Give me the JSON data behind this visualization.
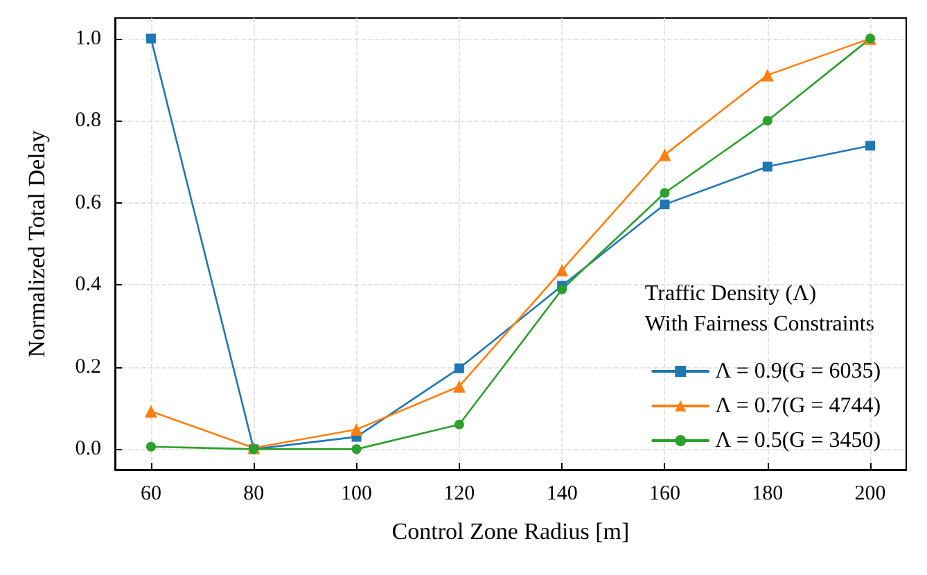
{
  "chart_data": {
    "type": "line",
    "xlabel": "Control Zone Radius [m]",
    "ylabel": "Normalized Total Delay",
    "legend_title": "Traffic Density (Λ)\nWith Fairness Constraints",
    "x": [
      60,
      80,
      100,
      120,
      140,
      160,
      180,
      200
    ],
    "series": [
      {
        "name": "Λ = 0.9(G = 6035)",
        "color": "#1f77b4",
        "marker": "square",
        "values": [
          1.0,
          0.0,
          0.03,
          0.197,
          0.398,
          0.596,
          0.688,
          0.739
        ]
      },
      {
        "name": "Λ = 0.7(G = 4744)",
        "color": "#ff7f0e",
        "marker": "triangle",
        "values": [
          0.092,
          0.003,
          0.048,
          0.153,
          0.436,
          0.717,
          0.911,
          1.0
        ]
      },
      {
        "name": "Λ = 0.5(G = 3450)",
        "color": "#2ca02c",
        "marker": "circle",
        "values": [
          0.006,
          0.0,
          0.0,
          0.06,
          0.389,
          0.624,
          0.8,
          1.0
        ]
      }
    ],
    "xlim": [
      53,
      207
    ],
    "xticks": [
      60,
      80,
      100,
      120,
      140,
      160,
      180,
      200
    ],
    "ylim": [
      -0.05,
      1.05
    ],
    "yticks": [
      {
        "value": 0,
        "label": "0.0"
      },
      0.2,
      0.4,
      0.6,
      0.8,
      {
        "value": 1,
        "label": "1.0"
      }
    ],
    "grid": true,
    "legend": "bottom right",
    "line_style": "solid"
  }
}
